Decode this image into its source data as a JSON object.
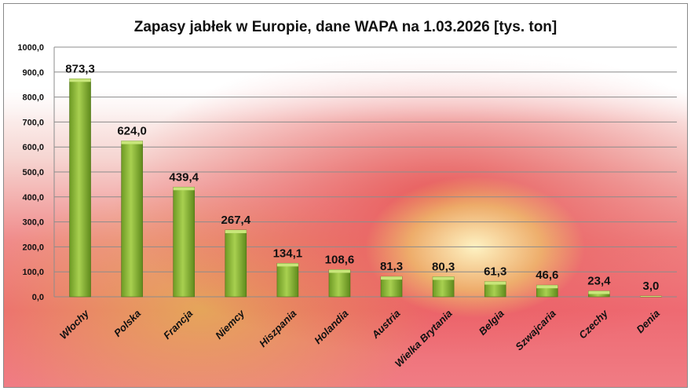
{
  "chart_data": {
    "type": "bar",
    "title": "Zapasy jabłek w Europie, dane WAPA na 1.03.2026  [tys. ton]",
    "xlabel": "",
    "ylabel": "",
    "ylim": [
      0,
      1000
    ],
    "grid": true,
    "legend": "none",
    "yticks": [
      "0,0",
      "100,0",
      "200,0",
      "300,0",
      "400,0",
      "500,0",
      "600,0",
      "700,0",
      "800,0",
      "900,0",
      "1000,0"
    ],
    "categories": [
      "Włochy",
      "Polska",
      "Francja",
      "Niemcy",
      "Hiszpania",
      "Holandia",
      "Austria",
      "Wielka Brytania",
      "Belgia",
      "Szwajcaria",
      "Czechy",
      "Denia"
    ],
    "values": [
      873.3,
      624.0,
      439.4,
      267.4,
      134.1,
      108.6,
      81.3,
      80.3,
      61.3,
      46.6,
      23.4,
      3.0
    ],
    "data_labels": [
      "873,3",
      "624,0",
      "439,4",
      "267,4",
      "134,1",
      "108,6",
      "81,3",
      "80,3",
      "61,3",
      "46,6",
      "23,4",
      "3,0"
    ],
    "bar_color": "#8db83a"
  }
}
